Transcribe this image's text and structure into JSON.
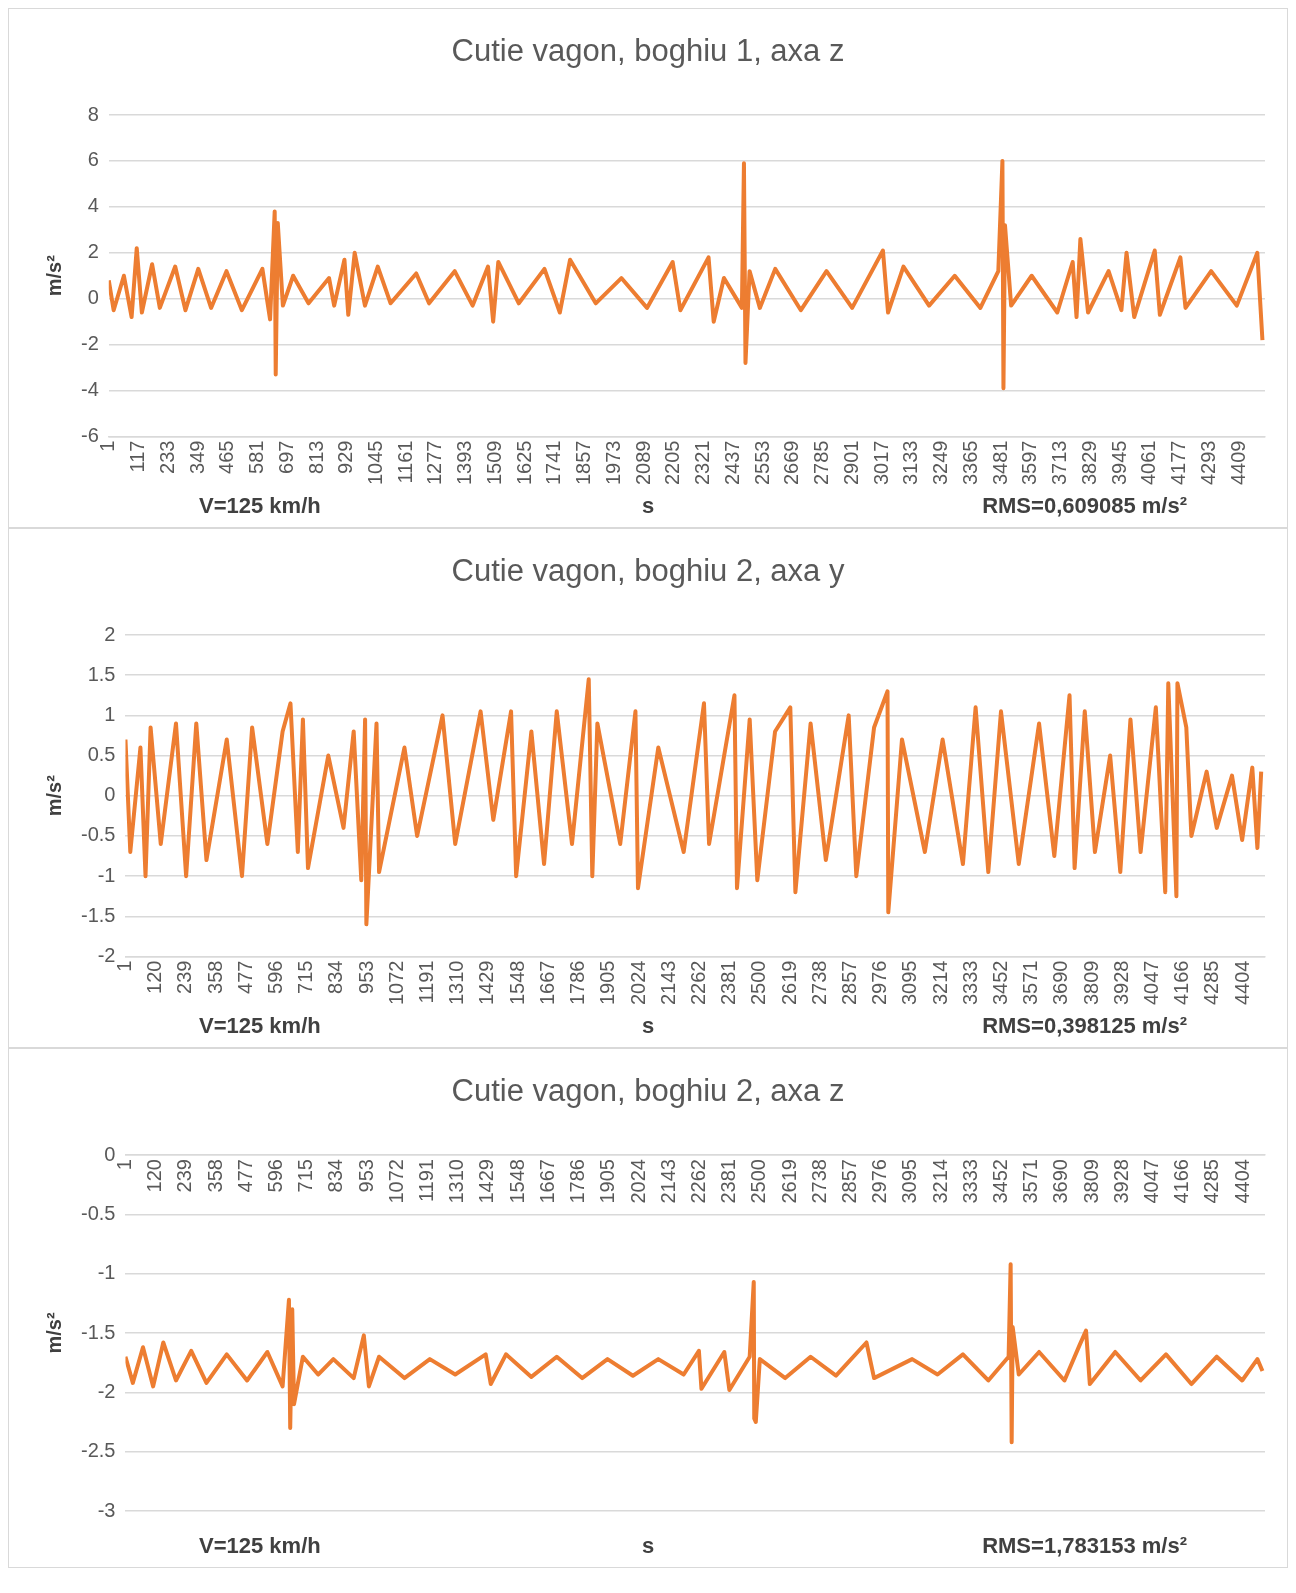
{
  "chart_data": [
    {
      "type": "line",
      "title": "Cutie vagon, boghiu 1, axa z",
      "xlabel": "s",
      "ylabel": "m/s²",
      "annotations": [
        "V=125 km/h",
        "RMS=0,609085 m/s²"
      ],
      "grid": "y",
      "x": [
        1,
        20,
        60,
        90,
        110,
        130,
        170,
        200,
        260,
        300,
        350,
        400,
        460,
        520,
        600,
        630,
        648,
        652,
        660,
        680,
        720,
        780,
        860,
        880,
        920,
        935,
        960,
        1000,
        1050,
        1100,
        1200,
        1250,
        1350,
        1420,
        1480,
        1500,
        1520,
        1600,
        1700,
        1760,
        1800,
        1900,
        2000,
        2100,
        2200,
        2230,
        2340,
        2360,
        2400,
        2470,
        2478,
        2484,
        2500,
        2540,
        2600,
        2700,
        2800,
        2900,
        3020,
        3040,
        3100,
        3200,
        3300,
        3400,
        3470,
        3486,
        3490,
        3496,
        3520,
        3600,
        3700,
        3760,
        3775,
        3790,
        3820,
        3900,
        3950,
        3970,
        4000,
        4080,
        4100,
        4180,
        4200,
        4300,
        4400,
        4480,
        4500
      ],
      "series": [
        {
          "color": "#ed7d31",
          "values": [
            0.8,
            -0.5,
            1.0,
            -0.8,
            2.2,
            -0.6,
            1.5,
            -0.4,
            1.4,
            -0.5,
            1.3,
            -0.4,
            1.2,
            -0.5,
            1.3,
            -0.9,
            3.8,
            -3.3,
            3.3,
            -0.3,
            1.0,
            -0.2,
            0.9,
            -0.3,
            1.7,
            -0.7,
            2.0,
            -0.3,
            1.4,
            -0.2,
            1.1,
            -0.2,
            1.2,
            -0.3,
            1.4,
            -1.0,
            1.6,
            -0.2,
            1.3,
            -0.6,
            1.7,
            -0.2,
            0.9,
            -0.4,
            1.6,
            -0.5,
            1.8,
            -1.0,
            0.9,
            -0.4,
            5.9,
            -2.8,
            1.2,
            -0.4,
            1.3,
            -0.5,
            1.2,
            -0.4,
            2.1,
            -0.6,
            1.4,
            -0.3,
            1.0,
            -0.4,
            1.2,
            6.0,
            -3.9,
            3.2,
            -0.3,
            1.0,
            -0.6,
            1.6,
            -0.8,
            2.6,
            -0.6,
            1.2,
            -0.5,
            2.0,
            -0.8,
            2.1,
            -0.7,
            1.8,
            -0.4,
            1.2,
            -0.3,
            2.0,
            -1.8
          ]
        }
      ],
      "xlim": [
        1,
        4510
      ],
      "xticks": [
        1,
        117,
        233,
        349,
        465,
        581,
        697,
        813,
        929,
        1045,
        1161,
        1277,
        1393,
        1509,
        1625,
        1741,
        1857,
        1973,
        2089,
        2205,
        2321,
        2437,
        2553,
        2669,
        2785,
        2901,
        3017,
        3133,
        3249,
        3365,
        3481,
        3597,
        3713,
        3829,
        3945,
        4061,
        4177,
        4293,
        4409
      ],
      "ylim": [
        -6,
        8
      ],
      "yticks": [
        -6,
        -4,
        -2,
        0,
        2,
        4,
        6,
        8
      ]
    },
    {
      "type": "line",
      "title": "Cutie vagon, boghiu 2, axa y",
      "xlabel": "s",
      "ylabel": "m/s²",
      "annotations": [
        "V=125 km/h",
        "RMS=0,398125 m/s²"
      ],
      "grid": "y",
      "x": [
        1,
        20,
        60,
        80,
        100,
        140,
        200,
        240,
        280,
        320,
        400,
        460,
        500,
        560,
        620,
        651,
        680,
        700,
        720,
        800,
        860,
        900,
        930,
        945,
        950,
        990,
        1000,
        1100,
        1150,
        1250,
        1300,
        1400,
        1450,
        1520,
        1540,
        1600,
        1650,
        1700,
        1760,
        1826,
        1840,
        1860,
        1950,
        2010,
        2020,
        2100,
        2200,
        2280,
        2300,
        2400,
        2410,
        2460,
        2490,
        2560,
        2620,
        2640,
        2700,
        2760,
        2850,
        2880,
        2950,
        3003,
        3006,
        3060,
        3150,
        3220,
        3300,
        3350,
        3400,
        3450,
        3520,
        3600,
        3660,
        3720,
        3740,
        3780,
        3820,
        3880,
        3920,
        3960,
        4000,
        4060,
        4097,
        4109,
        4141,
        4145,
        4180,
        4200,
        4260,
        4300,
        4360,
        4400,
        4440,
        4460,
        4475
      ],
      "series": [
        {
          "color": "#ed7d31",
          "values": [
            0.7,
            -0.7,
            0.6,
            -1.0,
            0.85,
            -0.6,
            0.9,
            -1.0,
            0.9,
            -0.8,
            0.7,
            -1.0,
            0.85,
            -0.6,
            0.8,
            1.15,
            -0.7,
            0.95,
            -0.9,
            0.5,
            -0.4,
            0.8,
            -1.05,
            0.95,
            -1.6,
            0.9,
            -0.95,
            0.6,
            -0.5,
            1.0,
            -0.6,
            1.05,
            -0.3,
            1.05,
            -1.0,
            0.8,
            -0.85,
            1.05,
            -0.6,
            1.45,
            -1.0,
            0.9,
            -0.6,
            1.05,
            -1.15,
            0.6,
            -0.7,
            1.15,
            -0.6,
            1.25,
            -1.15,
            0.95,
            -1.05,
            0.8,
            1.1,
            -1.2,
            0.9,
            -0.8,
            1.0,
            -1.0,
            0.85,
            1.3,
            -1.45,
            0.7,
            -0.7,
            0.7,
            -0.85,
            1.1,
            -0.95,
            1.05,
            -0.85,
            0.9,
            -0.75,
            1.25,
            -0.9,
            1.05,
            -0.7,
            0.5,
            -0.95,
            0.95,
            -0.7,
            1.1,
            -1.2,
            1.4,
            -1.25,
            1.4,
            0.85,
            -0.5,
            0.3,
            -0.4,
            0.25,
            -0.55,
            0.35,
            -0.65,
            0.3
          ]
        }
      ],
      "xlim": [
        1,
        4490
      ],
      "xticks": [
        1,
        120,
        239,
        358,
        477,
        596,
        715,
        834,
        953,
        1072,
        1191,
        1310,
        1429,
        1548,
        1667,
        1786,
        1905,
        2024,
        2143,
        2262,
        2381,
        2500,
        2619,
        2738,
        2857,
        2976,
        3095,
        3214,
        3333,
        3452,
        3571,
        3690,
        3809,
        3928,
        4047,
        4166,
        4285,
        4404
      ],
      "ylim": [
        -2,
        2
      ],
      "yticks": [
        -2,
        -1.5,
        -1,
        -0.5,
        0,
        0.5,
        1,
        1.5,
        2
      ]
    },
    {
      "type": "line",
      "title": "Cutie vagon, boghiu 2, axa z",
      "xlabel": "s",
      "ylabel": "m/s²",
      "annotations": [
        "V=125 km/h",
        "RMS=1,783153 m/s²"
      ],
      "grid": "y",
      "x": [
        1,
        30,
        70,
        110,
        150,
        200,
        260,
        320,
        400,
        480,
        560,
        620,
        645,
        650,
        658,
        665,
        700,
        760,
        820,
        900,
        940,
        960,
        1000,
        1100,
        1200,
        1300,
        1420,
        1440,
        1500,
        1600,
        1700,
        1800,
        1900,
        2000,
        2100,
        2200,
        2260,
        2270,
        2360,
        2380,
        2460,
        2476,
        2478,
        2484,
        2500,
        2600,
        2700,
        2800,
        2920,
        2950,
        3100,
        3200,
        3300,
        3400,
        3480,
        3488,
        3492,
        3496,
        3520,
        3600,
        3700,
        3760,
        3785,
        3800,
        3900,
        4000,
        4100,
        4200,
        4300,
        4400,
        4460,
        4480
      ],
      "series": [
        {
          "color": "#ed7d31",
          "values": [
            -1.7,
            -1.92,
            -1.62,
            -1.95,
            -1.58,
            -1.9,
            -1.65,
            -1.92,
            -1.68,
            -1.9,
            -1.66,
            -1.95,
            -1.22,
            -2.3,
            -1.3,
            -2.1,
            -1.7,
            -1.85,
            -1.72,
            -1.88,
            -1.52,
            -1.95,
            -1.7,
            -1.88,
            -1.72,
            -1.85,
            -1.68,
            -1.93,
            -1.68,
            -1.87,
            -1.7,
            -1.88,
            -1.72,
            -1.86,
            -1.72,
            -1.85,
            -1.65,
            -1.97,
            -1.66,
            -1.98,
            -1.7,
            -1.07,
            -2.22,
            -2.25,
            -1.72,
            -1.88,
            -1.7,
            -1.86,
            -1.58,
            -1.88,
            -1.72,
            -1.85,
            -1.68,
            -1.9,
            -1.7,
            -0.92,
            -2.42,
            -1.45,
            -1.85,
            -1.66,
            -1.9,
            -1.6,
            -1.48,
            -1.93,
            -1.66,
            -1.9,
            -1.68,
            -1.93,
            -1.7,
            -1.9,
            -1.72,
            -1.82
          ]
        }
      ],
      "xlim": [
        1,
        4490
      ],
      "xticks": [
        1,
        120,
        239,
        358,
        477,
        596,
        715,
        834,
        953,
        1072,
        1191,
        1310,
        1429,
        1548,
        1667,
        1786,
        1905,
        2024,
        2143,
        2262,
        2381,
        2500,
        2619,
        2738,
        2857,
        2976,
        3095,
        3214,
        3333,
        3452,
        3571,
        3690,
        3809,
        3928,
        4047,
        4166,
        4285,
        4404
      ],
      "ylim": [
        -3,
        0
      ],
      "yticks": [
        -3,
        -2.5,
        -2,
        -1.5,
        -1,
        -0.5,
        0
      ]
    }
  ]
}
